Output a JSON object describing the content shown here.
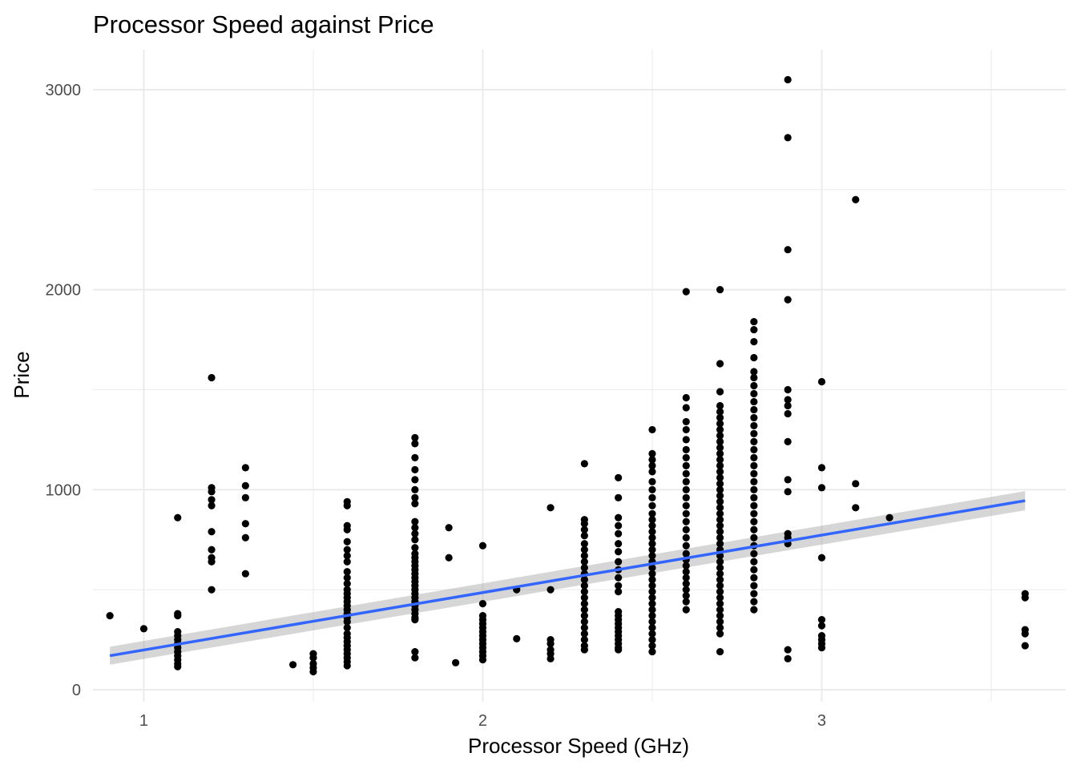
{
  "chart_data": {
    "type": "scatter",
    "title": "Processor Speed  against Price",
    "xlabel": "Processor Speed (GHz)",
    "ylabel": "Price",
    "xlim": [
      0.85,
      3.72
    ],
    "ylim": [
      -60,
      3200
    ],
    "x_ticks": [
      1,
      2,
      3
    ],
    "x_tick_labels": [
      "1",
      "2",
      "3"
    ],
    "x_minor_ticks": [
      1.5,
      2.5,
      3.5
    ],
    "y_ticks": [
      0,
      1000,
      2000,
      3000
    ],
    "y_tick_labels": [
      "0",
      "1000",
      "2000",
      "3000"
    ],
    "y_minor_ticks": [
      500,
      1500,
      2500
    ],
    "grid": true,
    "legend": "none",
    "colors": {
      "points": "#000000",
      "trend_line": "#3366ff",
      "confidence_band": "#999999",
      "grid": "#ebebeb",
      "tick_labels": "#4d4d4d"
    },
    "points": [
      [
        0.9,
        370
      ],
      [
        1.0,
        305
      ],
      [
        1.1,
        860
      ],
      [
        1.1,
        380
      ],
      [
        1.1,
        370
      ],
      [
        1.1,
        290
      ],
      [
        1.1,
        270
      ],
      [
        1.1,
        250
      ],
      [
        1.1,
        230
      ],
      [
        1.1,
        210
      ],
      [
        1.1,
        190
      ],
      [
        1.1,
        170
      ],
      [
        1.1,
        150
      ],
      [
        1.1,
        130
      ],
      [
        1.1,
        115
      ],
      [
        1.2,
        1560
      ],
      [
        1.2,
        1010
      ],
      [
        1.2,
        990
      ],
      [
        1.2,
        950
      ],
      [
        1.2,
        920
      ],
      [
        1.2,
        790
      ],
      [
        1.2,
        700
      ],
      [
        1.2,
        660
      ],
      [
        1.2,
        640
      ],
      [
        1.2,
        500
      ],
      [
        1.3,
        1110
      ],
      [
        1.3,
        1020
      ],
      [
        1.3,
        960
      ],
      [
        1.3,
        830
      ],
      [
        1.3,
        760
      ],
      [
        1.3,
        580
      ],
      [
        1.44,
        125
      ],
      [
        1.5,
        180
      ],
      [
        1.5,
        160
      ],
      [
        1.5,
        130
      ],
      [
        1.5,
        110
      ],
      [
        1.5,
        90
      ],
      [
        1.6,
        940
      ],
      [
        1.6,
        920
      ],
      [
        1.6,
        820
      ],
      [
        1.6,
        800
      ],
      [
        1.6,
        740
      ],
      [
        1.6,
        700
      ],
      [
        1.6,
        670
      ],
      [
        1.6,
        640
      ],
      [
        1.6,
        590
      ],
      [
        1.6,
        560
      ],
      [
        1.6,
        530
      ],
      [
        1.6,
        500
      ],
      [
        1.6,
        480
      ],
      [
        1.6,
        460
      ],
      [
        1.6,
        440
      ],
      [
        1.6,
        420
      ],
      [
        1.6,
        400
      ],
      [
        1.6,
        380
      ],
      [
        1.6,
        360
      ],
      [
        1.6,
        340
      ],
      [
        1.6,
        310
      ],
      [
        1.6,
        280
      ],
      [
        1.6,
        260
      ],
      [
        1.6,
        240
      ],
      [
        1.6,
        220
      ],
      [
        1.6,
        200
      ],
      [
        1.6,
        180
      ],
      [
        1.6,
        160
      ],
      [
        1.6,
        140
      ],
      [
        1.6,
        120
      ],
      [
        1.8,
        1260
      ],
      [
        1.8,
        1230
      ],
      [
        1.8,
        1160
      ],
      [
        1.8,
        1100
      ],
      [
        1.8,
        1050
      ],
      [
        1.8,
        1000
      ],
      [
        1.8,
        960
      ],
      [
        1.8,
        930
      ],
      [
        1.8,
        840
      ],
      [
        1.8,
        810
      ],
      [
        1.8,
        780
      ],
      [
        1.8,
        750
      ],
      [
        1.8,
        710
      ],
      [
        1.8,
        680
      ],
      [
        1.8,
        660
      ],
      [
        1.8,
        640
      ],
      [
        1.8,
        620
      ],
      [
        1.8,
        600
      ],
      [
        1.8,
        580
      ],
      [
        1.8,
        560
      ],
      [
        1.8,
        540
      ],
      [
        1.8,
        520
      ],
      [
        1.8,
        500
      ],
      [
        1.8,
        480
      ],
      [
        1.8,
        460
      ],
      [
        1.8,
        440
      ],
      [
        1.8,
        420
      ],
      [
        1.8,
        400
      ],
      [
        1.8,
        380
      ],
      [
        1.8,
        360
      ],
      [
        1.8,
        350
      ],
      [
        1.8,
        190
      ],
      [
        1.8,
        160
      ],
      [
        1.9,
        810
      ],
      [
        1.9,
        660
      ],
      [
        1.92,
        135
      ],
      [
        2.0,
        720
      ],
      [
        2.0,
        430
      ],
      [
        2.0,
        370
      ],
      [
        2.0,
        350
      ],
      [
        2.0,
        330
      ],
      [
        2.0,
        310
      ],
      [
        2.0,
        290
      ],
      [
        2.0,
        270
      ],
      [
        2.0,
        250
      ],
      [
        2.0,
        230
      ],
      [
        2.0,
        210
      ],
      [
        2.0,
        190
      ],
      [
        2.0,
        170
      ],
      [
        2.0,
        150
      ],
      [
        2.1,
        500
      ],
      [
        2.1,
        255
      ],
      [
        2.2,
        910
      ],
      [
        2.2,
        500
      ],
      [
        2.2,
        250
      ],
      [
        2.2,
        230
      ],
      [
        2.2,
        200
      ],
      [
        2.2,
        180
      ],
      [
        2.2,
        155
      ],
      [
        2.3,
        1130
      ],
      [
        2.3,
        850
      ],
      [
        2.3,
        830
      ],
      [
        2.3,
        800
      ],
      [
        2.3,
        770
      ],
      [
        2.3,
        730
      ],
      [
        2.3,
        700
      ],
      [
        2.3,
        670
      ],
      [
        2.3,
        640
      ],
      [
        2.3,
        610
      ],
      [
        2.3,
        580
      ],
      [
        2.3,
        550
      ],
      [
        2.3,
        520
      ],
      [
        2.3,
        490
      ],
      [
        2.3,
        460
      ],
      [
        2.3,
        430
      ],
      [
        2.3,
        400
      ],
      [
        2.3,
        370
      ],
      [
        2.3,
        340
      ],
      [
        2.3,
        310
      ],
      [
        2.3,
        280
      ],
      [
        2.3,
        250
      ],
      [
        2.3,
        220
      ],
      [
        2.3,
        200
      ],
      [
        2.4,
        1060
      ],
      [
        2.4,
        960
      ],
      [
        2.4,
        860
      ],
      [
        2.4,
        820
      ],
      [
        2.4,
        780
      ],
      [
        2.4,
        730
      ],
      [
        2.4,
        690
      ],
      [
        2.4,
        640
      ],
      [
        2.4,
        600
      ],
      [
        2.4,
        560
      ],
      [
        2.4,
        520
      ],
      [
        2.4,
        490
      ],
      [
        2.4,
        390
      ],
      [
        2.4,
        370
      ],
      [
        2.4,
        350
      ],
      [
        2.4,
        330
      ],
      [
        2.4,
        310
      ],
      [
        2.4,
        290
      ],
      [
        2.4,
        270
      ],
      [
        2.4,
        250
      ],
      [
        2.4,
        230
      ],
      [
        2.4,
        210
      ],
      [
        2.4,
        200
      ],
      [
        2.5,
        1300
      ],
      [
        2.5,
        1180
      ],
      [
        2.5,
        1150
      ],
      [
        2.5,
        1120
      ],
      [
        2.5,
        1090
      ],
      [
        2.5,
        1040
      ],
      [
        2.5,
        1000
      ],
      [
        2.5,
        960
      ],
      [
        2.5,
        920
      ],
      [
        2.5,
        880
      ],
      [
        2.5,
        850
      ],
      [
        2.5,
        820
      ],
      [
        2.5,
        790
      ],
      [
        2.5,
        760
      ],
      [
        2.5,
        730
      ],
      [
        2.5,
        700
      ],
      [
        2.5,
        670
      ],
      [
        2.5,
        640
      ],
      [
        2.5,
        610
      ],
      [
        2.5,
        580
      ],
      [
        2.5,
        550
      ],
      [
        2.5,
        520
      ],
      [
        2.5,
        490
      ],
      [
        2.5,
        460
      ],
      [
        2.5,
        430
      ],
      [
        2.5,
        400
      ],
      [
        2.5,
        370
      ],
      [
        2.5,
        340
      ],
      [
        2.5,
        310
      ],
      [
        2.5,
        280
      ],
      [
        2.5,
        250
      ],
      [
        2.5,
        220
      ],
      [
        2.5,
        190
      ],
      [
        2.6,
        1990
      ],
      [
        2.6,
        1460
      ],
      [
        2.6,
        1410
      ],
      [
        2.6,
        1340
      ],
      [
        2.6,
        1300
      ],
      [
        2.6,
        1250
      ],
      [
        2.6,
        1200
      ],
      [
        2.6,
        1160
      ],
      [
        2.6,
        1120
      ],
      [
        2.6,
        1080
      ],
      [
        2.6,
        1040
      ],
      [
        2.6,
        1000
      ],
      [
        2.6,
        960
      ],
      [
        2.6,
        920
      ],
      [
        2.6,
        880
      ],
      [
        2.6,
        840
      ],
      [
        2.6,
        800
      ],
      [
        2.6,
        760
      ],
      [
        2.6,
        720
      ],
      [
        2.6,
        680
      ],
      [
        2.6,
        650
      ],
      [
        2.6,
        620
      ],
      [
        2.6,
        590
      ],
      [
        2.6,
        560
      ],
      [
        2.6,
        530
      ],
      [
        2.6,
        500
      ],
      [
        2.6,
        470
      ],
      [
        2.6,
        440
      ],
      [
        2.6,
        400
      ],
      [
        2.7,
        2000
      ],
      [
        2.7,
        1630
      ],
      [
        2.7,
        1490
      ],
      [
        2.7,
        1420
      ],
      [
        2.7,
        1390
      ],
      [
        2.7,
        1360
      ],
      [
        2.7,
        1330
      ],
      [
        2.7,
        1300
      ],
      [
        2.7,
        1270
      ],
      [
        2.7,
        1240
      ],
      [
        2.7,
        1210
      ],
      [
        2.7,
        1180
      ],
      [
        2.7,
        1150
      ],
      [
        2.7,
        1120
      ],
      [
        2.7,
        1090
      ],
      [
        2.7,
        1060
      ],
      [
        2.7,
        1030
      ],
      [
        2.7,
        1000
      ],
      [
        2.7,
        970
      ],
      [
        2.7,
        940
      ],
      [
        2.7,
        910
      ],
      [
        2.7,
        880
      ],
      [
        2.7,
        850
      ],
      [
        2.7,
        820
      ],
      [
        2.7,
        790
      ],
      [
        2.7,
        760
      ],
      [
        2.7,
        730
      ],
      [
        2.7,
        700
      ],
      [
        2.7,
        670
      ],
      [
        2.7,
        640
      ],
      [
        2.7,
        610
      ],
      [
        2.7,
        580
      ],
      [
        2.7,
        550
      ],
      [
        2.7,
        520
      ],
      [
        2.7,
        490
      ],
      [
        2.7,
        460
      ],
      [
        2.7,
        430
      ],
      [
        2.7,
        400
      ],
      [
        2.7,
        370
      ],
      [
        2.7,
        340
      ],
      [
        2.7,
        310
      ],
      [
        2.7,
        280
      ],
      [
        2.7,
        190
      ],
      [
        2.8,
        1840
      ],
      [
        2.8,
        1800
      ],
      [
        2.8,
        1740
      ],
      [
        2.8,
        1660
      ],
      [
        2.8,
        1590
      ],
      [
        2.8,
        1560
      ],
      [
        2.8,
        1520
      ],
      [
        2.8,
        1480
      ],
      [
        2.8,
        1440
      ],
      [
        2.8,
        1400
      ],
      [
        2.8,
        1360
      ],
      [
        2.8,
        1320
      ],
      [
        2.8,
        1280
      ],
      [
        2.8,
        1240
      ],
      [
        2.8,
        1200
      ],
      [
        2.8,
        1160
      ],
      [
        2.8,
        1120
      ],
      [
        2.8,
        1080
      ],
      [
        2.8,
        1040
      ],
      [
        2.8,
        1000
      ],
      [
        2.8,
        960
      ],
      [
        2.8,
        920
      ],
      [
        2.8,
        880
      ],
      [
        2.8,
        840
      ],
      [
        2.8,
        800
      ],
      [
        2.8,
        760
      ],
      [
        2.8,
        720
      ],
      [
        2.8,
        680
      ],
      [
        2.8,
        640
      ],
      [
        2.8,
        600
      ],
      [
        2.8,
        560
      ],
      [
        2.8,
        520
      ],
      [
        2.8,
        480
      ],
      [
        2.8,
        440
      ],
      [
        2.8,
        400
      ],
      [
        2.9,
        3050
      ],
      [
        2.9,
        2760
      ],
      [
        2.9,
        2200
      ],
      [
        2.9,
        1950
      ],
      [
        2.9,
        1500
      ],
      [
        2.9,
        1450
      ],
      [
        2.9,
        1420
      ],
      [
        2.9,
        1380
      ],
      [
        2.9,
        1240
      ],
      [
        2.9,
        1050
      ],
      [
        2.9,
        990
      ],
      [
        2.9,
        780
      ],
      [
        2.9,
        760
      ],
      [
        2.9,
        730
      ],
      [
        2.9,
        200
      ],
      [
        2.9,
        155
      ],
      [
        3.0,
        1540
      ],
      [
        3.0,
        1110
      ],
      [
        3.0,
        1010
      ],
      [
        3.0,
        660
      ],
      [
        3.0,
        350
      ],
      [
        3.0,
        320
      ],
      [
        3.0,
        270
      ],
      [
        3.0,
        250
      ],
      [
        3.0,
        230
      ],
      [
        3.0,
        210
      ],
      [
        3.1,
        2450
      ],
      [
        3.1,
        1030
      ],
      [
        3.1,
        910
      ],
      [
        3.2,
        860
      ],
      [
        3.6,
        480
      ],
      [
        3.6,
        460
      ],
      [
        3.6,
        300
      ],
      [
        3.6,
        280
      ],
      [
        3.6,
        220
      ]
    ],
    "trend_line": {
      "x": [
        0.9,
        3.6
      ],
      "y": [
        170,
        945
      ],
      "band_halfwidth": [
        45,
        48
      ]
    }
  }
}
